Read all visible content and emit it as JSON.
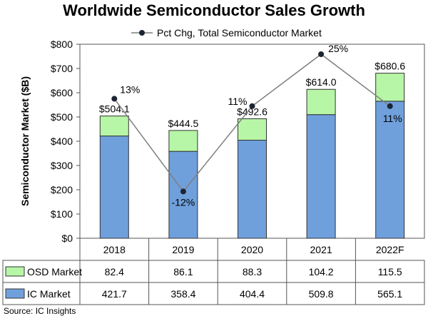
{
  "chart_data": {
    "type": "bar",
    "title": "Worldwide Semiconductor Sales Growth",
    "ylabel": "Semiconductor Market ($B)",
    "ylim": [
      0,
      800
    ],
    "yticks": [
      0,
      100,
      200,
      300,
      400,
      500,
      600,
      700,
      800
    ],
    "ytick_labels": [
      "$0",
      "$100",
      "$200",
      "$300",
      "$400",
      "$500",
      "$600",
      "$700",
      "$800"
    ],
    "categories": [
      "2018",
      "2019",
      "2020",
      "2021",
      "2022F"
    ],
    "stacked": true,
    "series": [
      {
        "name": "IC Market",
        "values": [
          421.7,
          358.4,
          404.4,
          509.8,
          565.1
        ],
        "color": "#6fa0dc"
      },
      {
        "name": "OSD Market",
        "values": [
          82.4,
          86.1,
          88.3,
          104.2,
          115.5
        ],
        "color": "#b6f6a6"
      }
    ],
    "totals": [
      504.1,
      444.5,
      492.6,
      614.0,
      680.6
    ],
    "total_labels": [
      "$504.1",
      "$444.5",
      "$492.6",
      "$614.0",
      "$680.6"
    ],
    "line_series": {
      "name": "Pct Chg, Total Semiconductor Market",
      "values": [
        13,
        -12,
        11,
        25,
        11
      ],
      "labels": [
        "13%",
        "-12%",
        "11%",
        "25%",
        "11%"
      ],
      "color": "#7f7f7f"
    },
    "table": {
      "rows": [
        {
          "label": "OSD Market",
          "values": [
            "82.4",
            "86.1",
            "88.3",
            "104.2",
            "115.5"
          ]
        },
        {
          "label": "IC Market",
          "values": [
            "421.7",
            "358.4",
            "404.4",
            "509.8",
            "565.1"
          ]
        }
      ]
    },
    "grid": false,
    "legend_position": "top"
  },
  "source": "Source: IC Insights"
}
